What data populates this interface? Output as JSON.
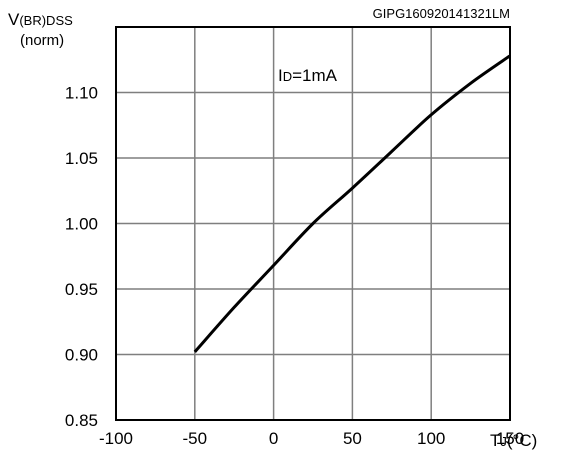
{
  "chart_data": {
    "type": "line",
    "source_code": "GIPG160920141321LM",
    "ylabel": {
      "main": "V",
      "sub": "(BR)DSS",
      "unit": "(norm)"
    },
    "xlabel": {
      "main": "T",
      "sub": "J",
      "unit": "(°C)"
    },
    "annotation": {
      "main": "I",
      "sub": "D",
      "rest": "=1mA"
    },
    "xlim": [
      -100,
      150
    ],
    "ylim": [
      0.85,
      1.15
    ],
    "x_ticks": [
      "-100",
      "-50",
      "0",
      "50",
      "100",
      "150"
    ],
    "x_tick_values": [
      -100,
      -50,
      0,
      50,
      100,
      150
    ],
    "y_ticks": [
      "0.85",
      "0.90",
      "0.95",
      "1.00",
      "1.05",
      "1.10"
    ],
    "y_tick_values": [
      0.85,
      0.9,
      0.95,
      1.0,
      1.05,
      1.1
    ],
    "grid": true,
    "series": [
      {
        "color": "#000000",
        "x": [
          -50,
          -25,
          0,
          25,
          50,
          75,
          100,
          125,
          150
        ],
        "y": [
          0.902,
          0.936,
          0.968,
          1.0,
          1.027,
          1.055,
          1.083,
          1.107,
          1.128
        ]
      }
    ]
  }
}
